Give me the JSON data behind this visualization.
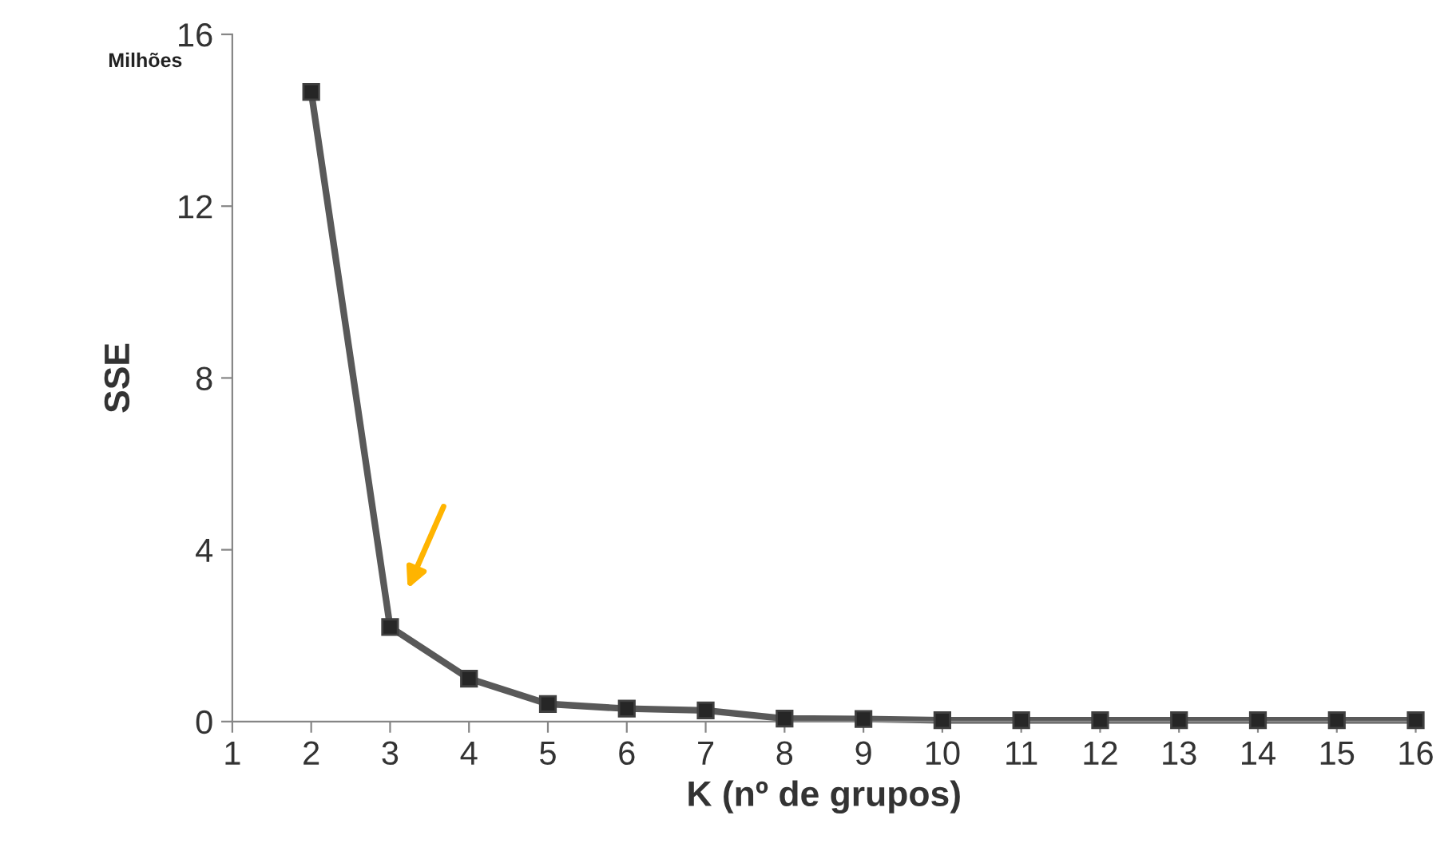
{
  "chart_data": {
    "type": "line",
    "xlabel": "K (nº de grupos)",
    "ylabel": "SSE",
    "annotations": [
      "Milhões"
    ],
    "x": [
      2,
      3,
      4,
      5,
      6,
      7,
      8,
      9,
      10,
      11,
      12,
      13,
      14,
      15,
      16
    ],
    "series": [
      {
        "color": "#595959",
        "values": [
          14.66,
          2.2,
          1.0,
          0.41,
          0.3,
          0.26,
          0.07,
          0.06,
          0.03,
          0.03,
          0.03,
          0.03,
          0.03,
          0.03,
          0.03
        ]
      }
    ],
    "marker": "square",
    "line_style": "solid",
    "grid": false,
    "legend": false,
    "xlim": [
      1,
      16
    ],
    "xticks": [
      1,
      2,
      3,
      4,
      5,
      6,
      7,
      8,
      9,
      10,
      11,
      12,
      13,
      14,
      15,
      16
    ],
    "ylim": [
      0,
      16
    ],
    "yticks": [
      0,
      4,
      8,
      12,
      16
    ]
  }
}
